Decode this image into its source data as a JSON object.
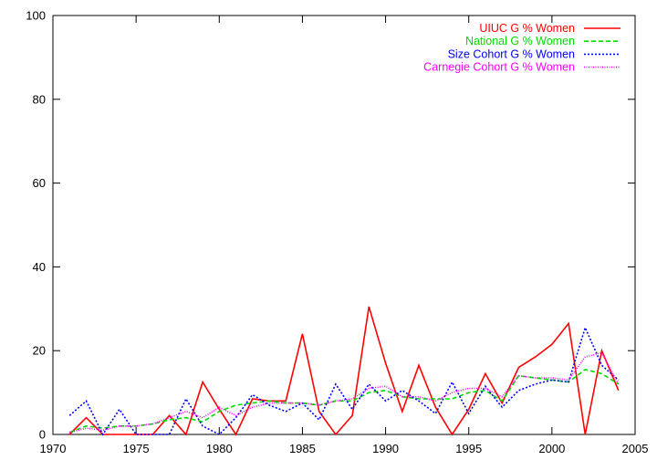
{
  "chart_data": {
    "type": "line",
    "title": "",
    "xlabel": "",
    "ylabel": "",
    "xlim": [
      1970,
      2005
    ],
    "ylim": [
      0,
      100
    ],
    "xticks": [
      1970,
      1975,
      1980,
      1985,
      1990,
      1995,
      2000,
      2005
    ],
    "yticks": [
      0,
      20,
      40,
      60,
      80,
      100
    ],
    "grid": false,
    "legend_position": "top-right",
    "x": [
      1971,
      1972,
      1973,
      1974,
      1975,
      1976,
      1977,
      1978,
      1979,
      1980,
      1981,
      1982,
      1983,
      1984,
      1985,
      1986,
      1987,
      1988,
      1989,
      1990,
      1991,
      1992,
      1993,
      1994,
      1995,
      1996,
      1997,
      1998,
      1999,
      2000,
      2001,
      2002,
      2003,
      2004
    ],
    "series": [
      {
        "name": "UIUC G % Women",
        "color": "#ff0000",
        "dash": "solid",
        "values": [
          0,
          4,
          0,
          0,
          0,
          0,
          4.5,
          0,
          12.5,
          6,
          0,
          8.5,
          8,
          8,
          24,
          5.5,
          0,
          4.5,
          30.5,
          17,
          5.5,
          16.5,
          6.5,
          0,
          6,
          14.5,
          7.5,
          16,
          18.5,
          21.5,
          26.5,
          0,
          20,
          10.5
        ]
      },
      {
        "name": "National G % Women",
        "color": "#00dd00",
        "dash": "dashed",
        "values": [
          0.5,
          2,
          1.5,
          2,
          2,
          2.5,
          3.5,
          4,
          3,
          5.5,
          7,
          7.5,
          8,
          7.5,
          7.5,
          7,
          8,
          8,
          10,
          10.5,
          9,
          8.5,
          8.5,
          8.5,
          10,
          10.5,
          8,
          14,
          13.5,
          13,
          12.5,
          15.5,
          14.5,
          12
        ]
      },
      {
        "name": "Size Cohort G % Women",
        "color": "#0000ff",
        "dash": "dotted",
        "values": [
          4.5,
          8,
          0,
          6,
          0,
          0,
          0,
          8.5,
          2,
          0,
          4,
          9.5,
          7,
          5.5,
          7.5,
          3.5,
          12,
          6,
          12,
          8,
          10.5,
          8,
          5,
          12.5,
          5,
          11.5,
          6.5,
          10.5,
          12,
          13,
          12.5,
          25.5,
          16.5,
          13
        ]
      },
      {
        "name": "Carnegie Cohort G % Women",
        "color": "#ff00ff",
        "dash": "fine-dotted",
        "values": [
          0.5,
          1.5,
          1,
          2,
          2,
          2.5,
          4,
          5.5,
          4,
          6.5,
          4.5,
          6.5,
          7.5,
          7.5,
          7.5,
          7,
          8,
          8.5,
          11,
          11.5,
          9,
          9,
          8,
          10,
          11,
          11,
          9,
          14,
          13.5,
          13.5,
          13,
          18.5,
          19.5,
          12
        ]
      }
    ]
  }
}
